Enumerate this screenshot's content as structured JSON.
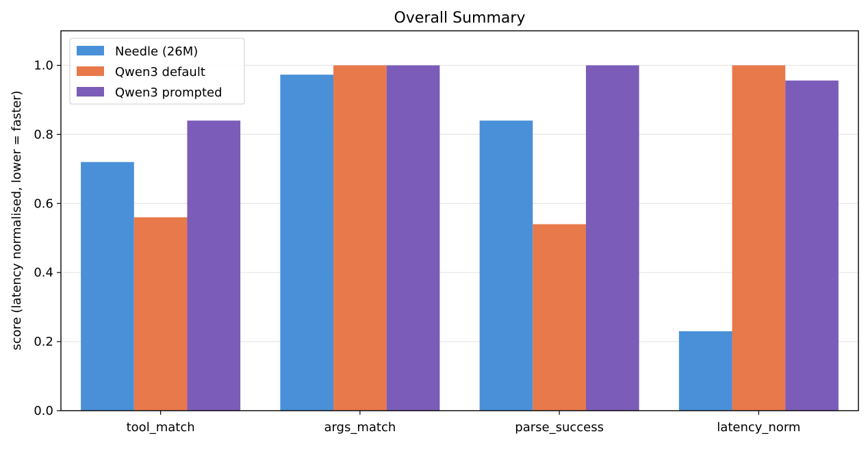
{
  "chart_data": {
    "type": "bar",
    "title": "Overall Summary",
    "xlabel": "",
    "ylabel": "score (latency normalised, lower = faster)",
    "categories": [
      "tool_match",
      "args_match",
      "parse_success",
      "latency_norm"
    ],
    "series": [
      {
        "name": "Needle (26M)",
        "color": "#4a90d9",
        "values": [
          0.72,
          0.973,
          0.84,
          0.23
        ]
      },
      {
        "name": "Qwen3 default",
        "color": "#e8794b",
        "values": [
          0.56,
          1.0,
          0.54,
          1.0
        ]
      },
      {
        "name": "Qwen3 prompted",
        "color": "#7b5cb8",
        "values": [
          0.84,
          1.0,
          1.0,
          0.956
        ]
      }
    ],
    "ylim": [
      0,
      1.1
    ],
    "yticks": [
      "0.0",
      "0.2",
      "0.4",
      "0.6",
      "0.8",
      "1.0"
    ],
    "grid": "horizontal",
    "legend_position": "upper-left"
  }
}
